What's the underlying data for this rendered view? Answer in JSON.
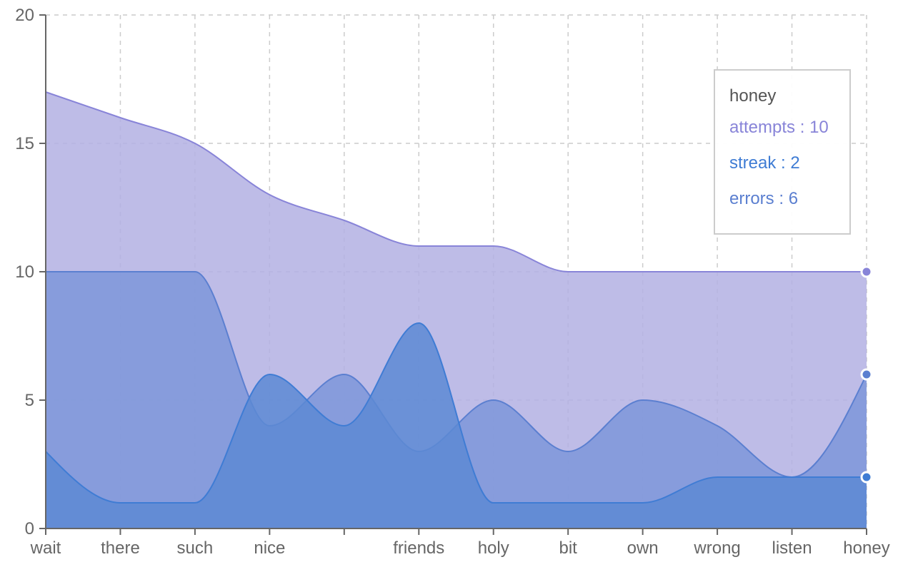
{
  "chart_data": {
    "type": "area",
    "categories": [
      "wait",
      "there",
      "such",
      "nice",
      "",
      "friends",
      "holy",
      "bit",
      "own",
      "wrong",
      "listen",
      "honey"
    ],
    "ylim": [
      0,
      20
    ],
    "yticks": [
      0,
      5,
      10,
      15,
      20
    ],
    "grid": true,
    "series": [
      {
        "name": "attempts",
        "values": [
          17,
          16,
          15,
          13,
          12,
          11,
          11,
          10,
          10,
          10,
          10,
          10
        ],
        "color": "#8884d8",
        "fill": "#b3b0e3"
      },
      {
        "name": "errors",
        "values": [
          10,
          10,
          10,
          4,
          6,
          3,
          5,
          3,
          5,
          4,
          2,
          6
        ],
        "color": "#5b7fd0",
        "fill": "#7e96d9"
      },
      {
        "name": "streak",
        "values": [
          3,
          1,
          1,
          6,
          4,
          8,
          1,
          1,
          1,
          2,
          2,
          2
        ],
        "color": "#3f7cd4",
        "fill": "#5d8ad4"
      }
    ],
    "tooltip": {
      "title": "honey",
      "rows": [
        {
          "name": "attempts",
          "value": 10,
          "color": "#8884d8"
        },
        {
          "name": "streak",
          "value": 2,
          "color": "#3f7cd4"
        },
        {
          "name": "errors",
          "value": 6,
          "color": "#5b7fd0"
        }
      ]
    }
  }
}
